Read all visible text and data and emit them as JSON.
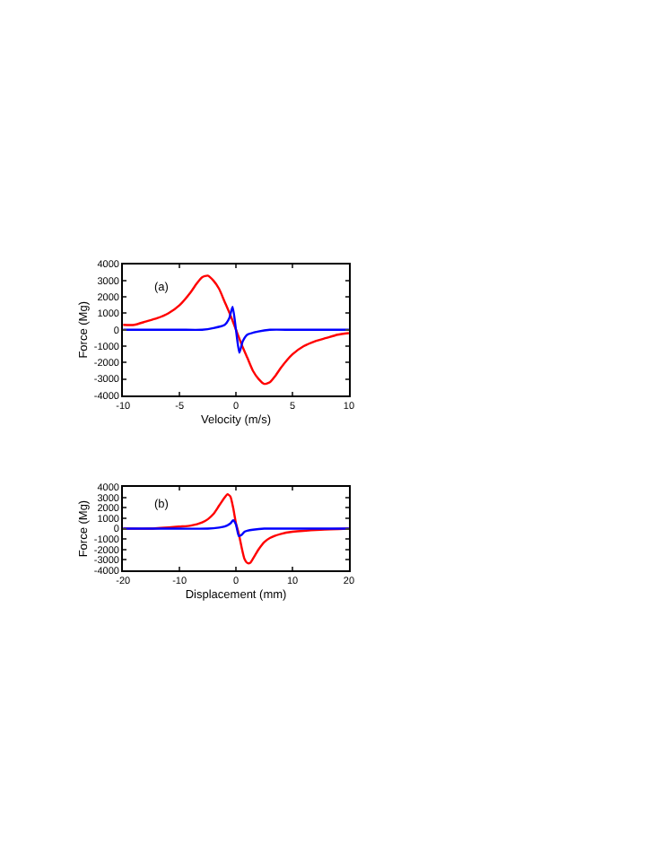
{
  "chart_data": [
    {
      "type": "line",
      "xlabel": "Velocity (m/s)",
      "ylabel": "Force (Mg)",
      "annotations": [
        "(a)"
      ],
      "xlim": [
        -10,
        10
      ],
      "xticks": [
        -10,
        -5,
        0,
        5,
        10
      ],
      "ylim": [
        -4000,
        4000
      ],
      "yticks": [
        -4000,
        -3000,
        -2000,
        -1000,
        0,
        1000,
        2000,
        3000,
        4000
      ],
      "series": [
        {
          "color": "#ff0000",
          "x": [
            -10,
            -9,
            -8,
            -7,
            -6,
            -5,
            -4,
            -3.5,
            -3,
            -2.5,
            -2,
            -1.5,
            -1,
            -0.5,
            0,
            0.5,
            1,
            1.5,
            2,
            2.5,
            3,
            3.5,
            4,
            5,
            6,
            7,
            8,
            9,
            10
          ],
          "values": [
            300,
            300,
            500,
            700,
            1000,
            1500,
            2300,
            2800,
            3200,
            3300,
            3000,
            2500,
            1700,
            900,
            0,
            -900,
            -1700,
            -2500,
            -3000,
            -3300,
            -3200,
            -2800,
            -2300,
            -1500,
            -1000,
            -700,
            -500,
            -300,
            -200
          ]
        },
        {
          "color": "#0000ff",
          "x": [
            -10,
            -5,
            -3,
            -2,
            -1,
            -0.6,
            -0.3,
            0,
            0.3,
            0.6,
            1,
            2,
            3,
            5,
            10
          ],
          "values": [
            0,
            0,
            0,
            100,
            300,
            700,
            1400,
            0,
            -1400,
            -700,
            -300,
            -100,
            0,
            0,
            0
          ]
        }
      ]
    },
    {
      "type": "line",
      "xlabel": "Displacement (mm)",
      "ylabel": "Force (Mg)",
      "annotations": [
        "(b)"
      ],
      "xlim": [
        -20,
        20
      ],
      "xticks": [
        -20,
        -10,
        0,
        10,
        20
      ],
      "ylim": [
        -4000,
        4000
      ],
      "yticks": [
        -4000,
        -3000,
        -2000,
        -1000,
        0,
        1000,
        2000,
        3000,
        4000
      ],
      "series": [
        {
          "color": "#ff0000",
          "x": [
            -20,
            -15,
            -10,
            -8,
            -6,
            -5,
            -4,
            -3,
            -2,
            -1.5,
            -1,
            -0.5,
            0,
            0.5,
            1,
            1.5,
            2,
            2.5,
            3,
            4,
            5,
            6,
            8,
            10,
            15,
            20
          ],
          "values": [
            0,
            0,
            200,
            300,
            600,
            900,
            1400,
            2200,
            3000,
            3300,
            3100,
            2000,
            500,
            -500,
            -1800,
            -2900,
            -3300,
            -3300,
            -2900,
            -2000,
            -1300,
            -900,
            -500,
            -300,
            -100,
            0
          ]
        },
        {
          "color": "#0000ff",
          "x": [
            -20,
            -10,
            -5,
            -3,
            -2,
            -1,
            -0.5,
            0,
            0.5,
            1,
            1.5,
            2,
            3,
            5,
            10,
            20
          ],
          "values": [
            0,
            0,
            0,
            100,
            200,
            500,
            800,
            400,
            -700,
            -600,
            -300,
            -200,
            -100,
            0,
            0,
            0
          ]
        }
      ]
    }
  ]
}
